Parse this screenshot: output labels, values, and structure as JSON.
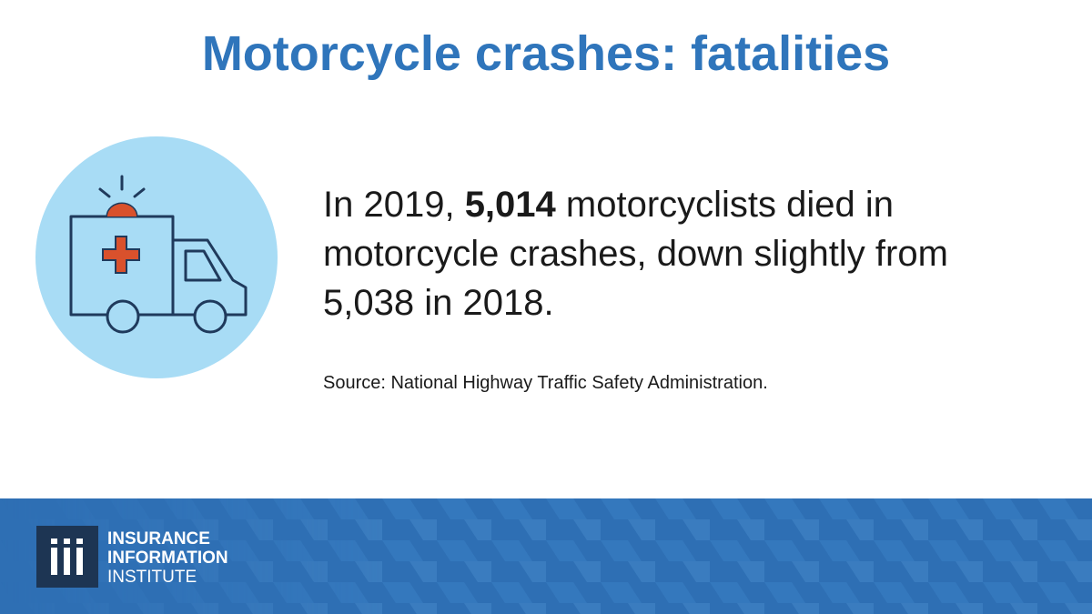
{
  "title": "Motorcycle crashes: fatalities",
  "statement": {
    "before": "In 2019, ",
    "highlight": "5,014",
    "after": " motorcyclists died in motorcycle crashes, down slightly from 5,038 in 2018."
  },
  "source": "Source: National Highway Traffic Safety Administration.",
  "footer": {
    "logo": {
      "line1": "INSURANCE",
      "line2": "INFORMATION",
      "line3": "INSTITUTE"
    }
  }
}
